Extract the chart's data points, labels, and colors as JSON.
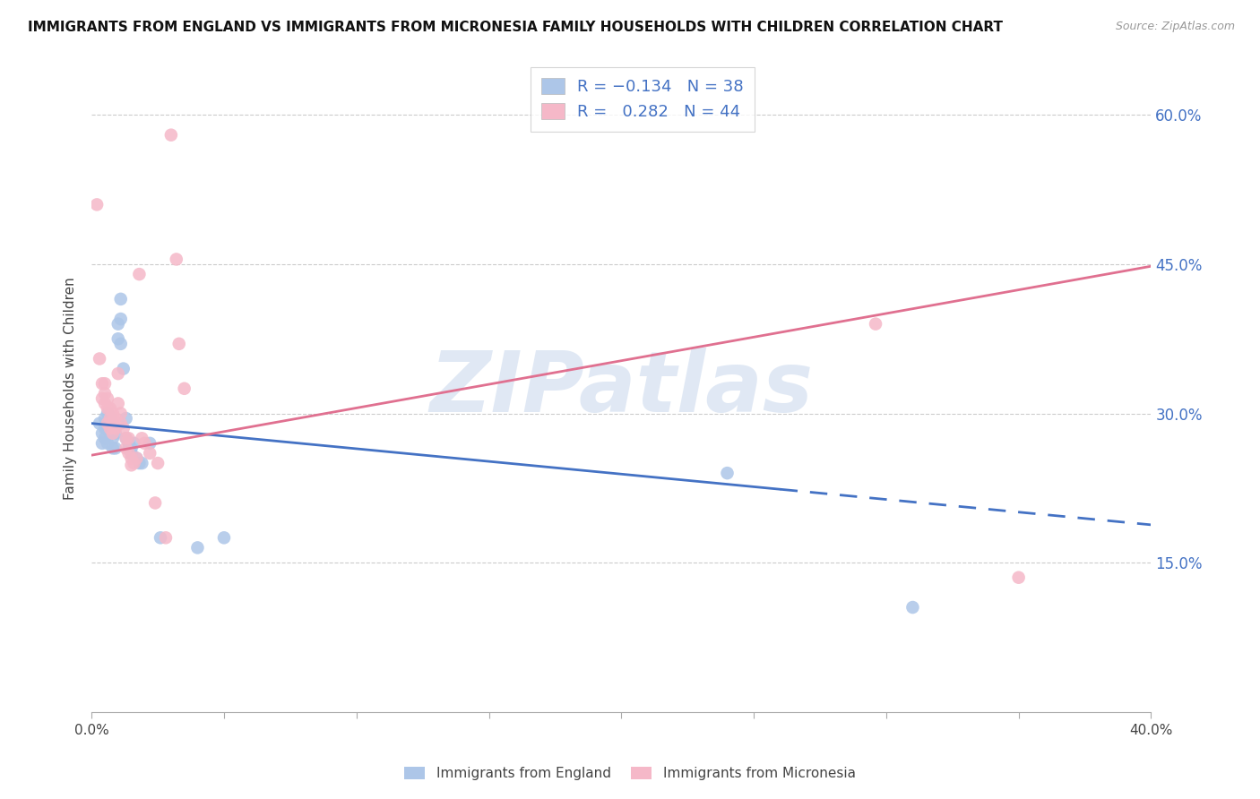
{
  "title": "IMMIGRANTS FROM ENGLAND VS IMMIGRANTS FROM MICRONESIA FAMILY HOUSEHOLDS WITH CHILDREN CORRELATION CHART",
  "source": "Source: ZipAtlas.com",
  "ylabel": "Family Households with Children",
  "watermark": "ZIPatlas",
  "england_color": "#adc6e8",
  "micronesia_color": "#f5b8c8",
  "england_line_color": "#4472c4",
  "micronesia_line_color": "#e07090",
  "right_axis_color": "#4472c4",
  "xlim": [
    0.0,
    0.4
  ],
  "ylim": [
    0.0,
    0.65
  ],
  "yticks": [
    0.15,
    0.3,
    0.45,
    0.6
  ],
  "ytick_labels": [
    "15.0%",
    "30.0%",
    "45.0%",
    "60.0%"
  ],
  "england_scatter": [
    [
      0.003,
      0.29
    ],
    [
      0.004,
      0.28
    ],
    [
      0.004,
      0.27
    ],
    [
      0.005,
      0.295
    ],
    [
      0.005,
      0.285
    ],
    [
      0.005,
      0.275
    ],
    [
      0.006,
      0.3
    ],
    [
      0.006,
      0.285
    ],
    [
      0.006,
      0.27
    ],
    [
      0.007,
      0.295
    ],
    [
      0.007,
      0.28
    ],
    [
      0.008,
      0.29
    ],
    [
      0.008,
      0.275
    ],
    [
      0.008,
      0.265
    ],
    [
      0.009,
      0.28
    ],
    [
      0.009,
      0.265
    ],
    [
      0.01,
      0.39
    ],
    [
      0.01,
      0.375
    ],
    [
      0.011,
      0.415
    ],
    [
      0.011,
      0.395
    ],
    [
      0.011,
      0.37
    ],
    [
      0.012,
      0.345
    ],
    [
      0.013,
      0.295
    ],
    [
      0.013,
      0.275
    ],
    [
      0.014,
      0.27
    ],
    [
      0.014,
      0.265
    ],
    [
      0.015,
      0.265
    ],
    [
      0.015,
      0.26
    ],
    [
      0.016,
      0.27
    ],
    [
      0.017,
      0.255
    ],
    [
      0.018,
      0.25
    ],
    [
      0.019,
      0.25
    ],
    [
      0.022,
      0.27
    ],
    [
      0.026,
      0.175
    ],
    [
      0.04,
      0.165
    ],
    [
      0.05,
      0.175
    ],
    [
      0.24,
      0.24
    ],
    [
      0.31,
      0.105
    ]
  ],
  "micronesia_scatter": [
    [
      0.002,
      0.51
    ],
    [
      0.003,
      0.355
    ],
    [
      0.004,
      0.33
    ],
    [
      0.004,
      0.315
    ],
    [
      0.005,
      0.33
    ],
    [
      0.005,
      0.32
    ],
    [
      0.005,
      0.31
    ],
    [
      0.006,
      0.315
    ],
    [
      0.006,
      0.305
    ],
    [
      0.006,
      0.29
    ],
    [
      0.007,
      0.305
    ],
    [
      0.007,
      0.295
    ],
    [
      0.007,
      0.285
    ],
    [
      0.008,
      0.3
    ],
    [
      0.008,
      0.29
    ],
    [
      0.008,
      0.28
    ],
    [
      0.009,
      0.295
    ],
    [
      0.009,
      0.285
    ],
    [
      0.01,
      0.34
    ],
    [
      0.01,
      0.31
    ],
    [
      0.011,
      0.3
    ],
    [
      0.011,
      0.29
    ],
    [
      0.012,
      0.285
    ],
    [
      0.013,
      0.275
    ],
    [
      0.013,
      0.265
    ],
    [
      0.014,
      0.275
    ],
    [
      0.014,
      0.26
    ],
    [
      0.015,
      0.255
    ],
    [
      0.015,
      0.248
    ],
    [
      0.016,
      0.25
    ],
    [
      0.017,
      0.255
    ],
    [
      0.018,
      0.44
    ],
    [
      0.019,
      0.275
    ],
    [
      0.02,
      0.27
    ],
    [
      0.022,
      0.26
    ],
    [
      0.024,
      0.21
    ],
    [
      0.025,
      0.25
    ],
    [
      0.028,
      0.175
    ],
    [
      0.03,
      0.58
    ],
    [
      0.032,
      0.455
    ],
    [
      0.033,
      0.37
    ],
    [
      0.035,
      0.325
    ],
    [
      0.296,
      0.39
    ],
    [
      0.35,
      0.135
    ]
  ],
  "england_line": {
    "x0": 0.0,
    "y0": 0.29,
    "x1": 0.4,
    "y1": 0.188
  },
  "england_line_solid_end": 0.26,
  "micronesia_line": {
    "x0": 0.0,
    "y0": 0.258,
    "x1": 0.4,
    "y1": 0.448
  }
}
